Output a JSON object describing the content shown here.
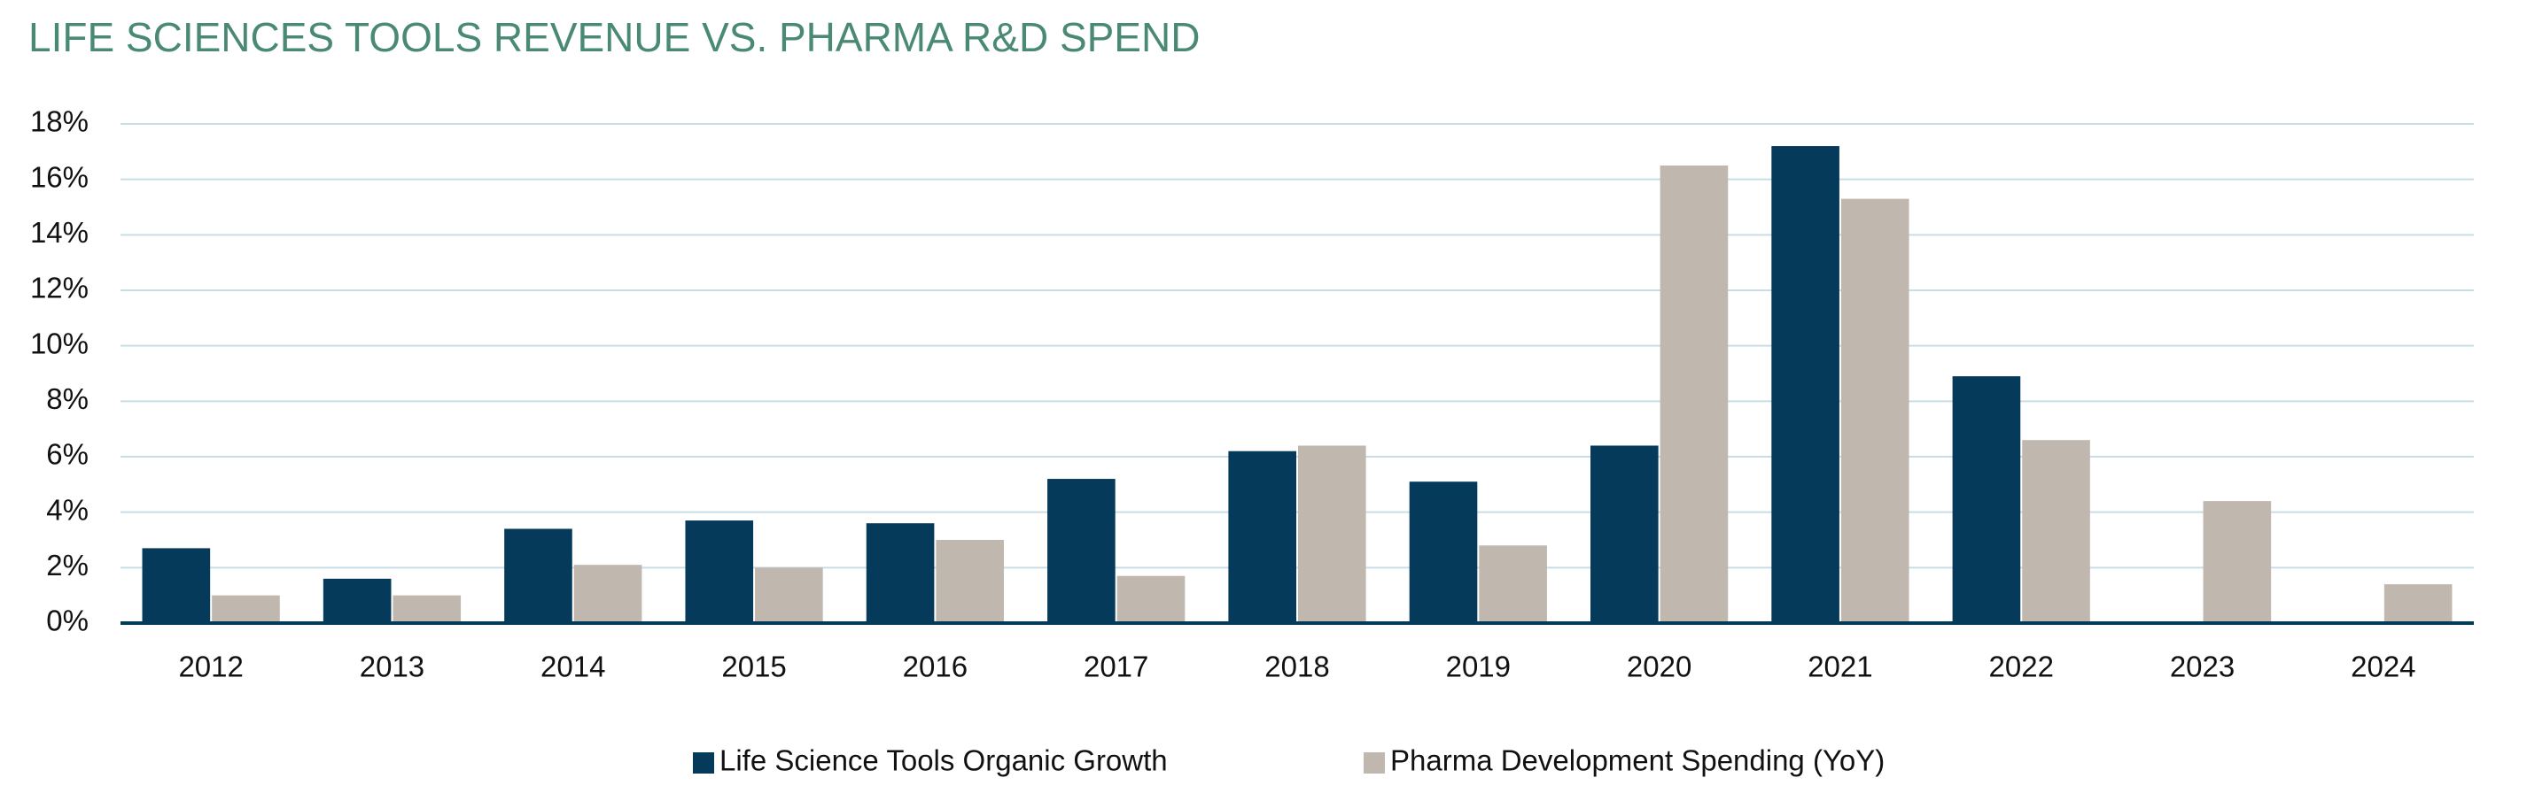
{
  "chart_data": {
    "type": "bar",
    "title": "LIFE SCIENCES TOOLS REVENUE VS. PHARMA R&D SPEND",
    "categories": [
      "2012",
      "2013",
      "2014",
      "2015",
      "2016",
      "2017",
      "2018",
      "2019",
      "2020",
      "2021",
      "2022",
      "2023",
      "2024"
    ],
    "series": [
      {
        "name": "Life Science Tools Organic Growth",
        "color": "#063a5a",
        "values": [
          2.7,
          1.6,
          3.4,
          3.7,
          3.6,
          5.2,
          6.2,
          5.1,
          6.4,
          17.2,
          8.9,
          null,
          null
        ]
      },
      {
        "name": "Pharma Development Spending (YoY)",
        "color": "#c0b8af",
        "values": [
          1.0,
          1.0,
          2.1,
          2.0,
          3.0,
          1.7,
          6.4,
          2.8,
          16.5,
          15.3,
          6.6,
          4.4,
          1.4
        ]
      }
    ],
    "ylim": [
      0,
      18
    ],
    "yticks": [
      {
        "value": 0,
        "label": "0%"
      },
      {
        "value": 2,
        "label": "2%"
      },
      {
        "value": 4,
        "label": "4%"
      },
      {
        "value": 6,
        "label": "6%"
      },
      {
        "value": 8,
        "label": "8%"
      },
      {
        "value": 10,
        "label": "10%"
      },
      {
        "value": 12,
        "label": "12%"
      },
      {
        "value": 14,
        "label": "14%"
      },
      {
        "value": 16,
        "label": "16%"
      },
      {
        "value": 18,
        "label": "18%"
      }
    ],
    "grid": true,
    "legend": "bottom"
  }
}
